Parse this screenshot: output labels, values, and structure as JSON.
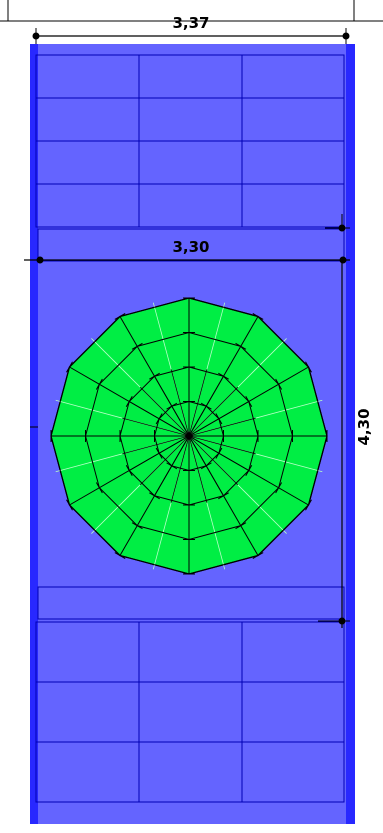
{
  "dimensions": {
    "top_width": "3,37",
    "inner_width": "3,30",
    "inner_height": "4,30"
  },
  "colors": {
    "slab_blue": "#6464ff",
    "edge_blue": "#1a1aff",
    "grid_line": "#0000b4",
    "circle_green": "#00ee44",
    "ink": "#000000"
  },
  "circle": {
    "rings": 4,
    "segments": 12
  }
}
